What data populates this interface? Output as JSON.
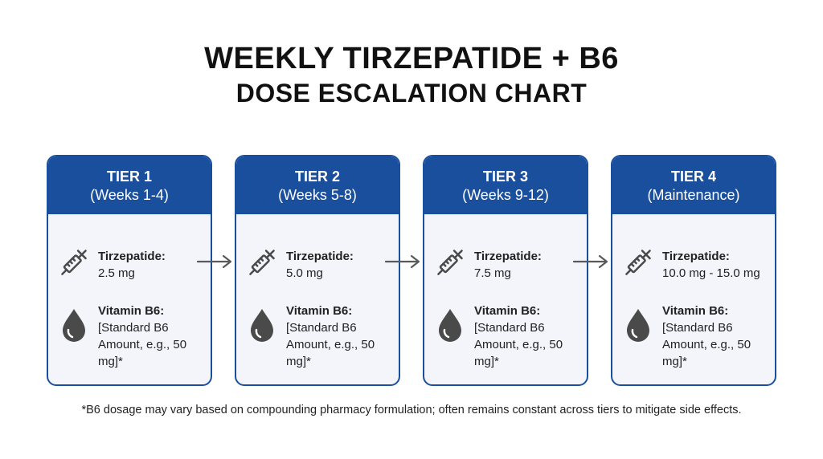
{
  "title": "WEEKLY TIRZEPATIDE + B6",
  "subtitle": "DOSE ESCALATION CHART",
  "colors": {
    "accent": "#1a4f9e",
    "card_bg": "#f3f5fb",
    "icon": "#4a4a4a",
    "arrow": "#5a5a5a"
  },
  "icons": {
    "dose": "syringe-icon",
    "vitamin": "droplet-icon",
    "step": "arrow-right-icon"
  },
  "tiers": [
    {
      "name": "TIER 1",
      "period": "(Weeks 1-4)",
      "tirz_label": "Tirzepatide:",
      "tirz_value": "2.5 mg",
      "b6_label": "Vitamin B6:",
      "b6_value": "[Standard B6 Amount, e.g., 50 mg]*"
    },
    {
      "name": "TIER 2",
      "period": "(Weeks 5-8)",
      "tirz_label": "Tirzepatide:",
      "tirz_value": "5.0 mg",
      "b6_label": "Vitamin B6:",
      "b6_value": "[Standard B6 Amount, e.g., 50 mg]*"
    },
    {
      "name": "TIER 3",
      "period": "(Weeks 9-12)",
      "tirz_label": "Tirzepatide:",
      "tirz_value": "7.5 mg",
      "b6_label": "Vitamin B6:",
      "b6_value": "[Standard B6 Amount, e.g., 50 mg]*"
    },
    {
      "name": "TIER 4",
      "period": "(Maintenance)",
      "tirz_label": "Tirzepatide:",
      "tirz_value": "10.0 mg - 15.0 mg",
      "b6_label": "Vitamin B6:",
      "b6_value": "[Standard B6 Amount, e.g., 50 mg]*"
    }
  ],
  "footnote": "*B6 dosage may vary based on compounding pharmacy formulation; often remains constant across tiers to mitigate side effects."
}
